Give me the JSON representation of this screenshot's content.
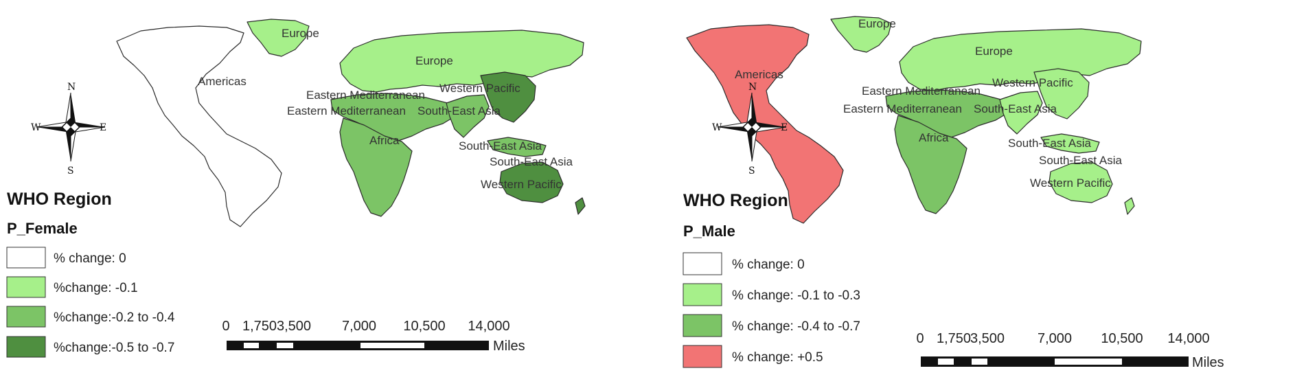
{
  "colors": {
    "white": "#ffffff",
    "light_green": "#a6f08a",
    "mid_green": "#7cc466",
    "dark_green": "#4f8f40",
    "red": "#f27474"
  },
  "maps": [
    {
      "legend_title": "WHO Region",
      "field": "P_Female",
      "legend": [
        {
          "label": "% change: 0",
          "color": "#ffffff"
        },
        {
          "label": "%change: -0.1",
          "color": "#a6f08a"
        },
        {
          "label": "%change:-0.2 to -0.4",
          "color": "#7cc466"
        },
        {
          "label": "%change:-0.5 to -0.7",
          "color": "#4f8f40"
        }
      ],
      "region_labels": {
        "americas": "Americas",
        "europe_green": "Europe",
        "europe": "Europe",
        "eastern_med_1": "Eastern Mediterranean",
        "eastern_med_2": "Eastern Mediterranean",
        "south_east_asia_1": "South-East Asia",
        "western_pacific_1": "Western Pacific",
        "africa": "Africa",
        "south_east_asia_2": "South-East Asia",
        "south_east_asia_3": "South-East Asia",
        "western_pacific_2": "Western Pacific"
      },
      "region_values": {
        "americas": "% change: 0",
        "europe": "%change: -0.1",
        "eastern_mediterranean": "%change:-0.2 to -0.4",
        "africa": "%change:-0.2 to -0.4",
        "south_east_asia": "%change:-0.2 to -0.4",
        "western_pacific": "%change:-0.5 to -0.7"
      },
      "compass": {
        "n": "N",
        "s": "S",
        "e": "E",
        "w": "W"
      },
      "scale": {
        "ticks": [
          "0",
          "1,750",
          "3,500",
          "7,000",
          "10,500",
          "14,000"
        ],
        "unit": "Miles"
      }
    },
    {
      "legend_title": "WHO Region",
      "field": "P_Male",
      "legend": [
        {
          "label": "% change: 0",
          "color": "#ffffff"
        },
        {
          "label": "% change: -0.1 to -0.3",
          "color": "#a6f08a"
        },
        {
          "label": "% change: -0.4 to -0.7",
          "color": "#7cc466"
        },
        {
          "label": "% change: +0.5",
          "color": "#f27474"
        }
      ],
      "region_labels": {
        "americas": "Americas",
        "europe_green": "Europe",
        "europe": "Europe",
        "eastern_med_1": "Eastern Mediterranean",
        "eastern_med_2": "Eastern Mediterranean",
        "south_east_asia_1": "South-East Asia",
        "western_pacific_1": "Western Pacific",
        "africa": "Africa",
        "south_east_asia_2": "South-East Asia",
        "south_east_asia_3": "South-East Asia",
        "western_pacific_2": "Western Pacific"
      },
      "region_values": {
        "americas": "% change: +0.5",
        "europe": "% change: -0.1 to -0.3",
        "eastern_mediterranean": "% change: -0.4 to -0.7",
        "africa": "% change: -0.4 to -0.7",
        "south_east_asia": "% change: -0.1 to -0.3",
        "western_pacific": "% change: -0.1 to -0.3"
      },
      "compass": {
        "n": "N",
        "s": "S",
        "e": "E",
        "w": "W"
      },
      "scale": {
        "ticks": [
          "0",
          "1,750",
          "3,500",
          "7,000",
          "10,500",
          "14,000"
        ],
        "unit": "Miles"
      }
    }
  ]
}
